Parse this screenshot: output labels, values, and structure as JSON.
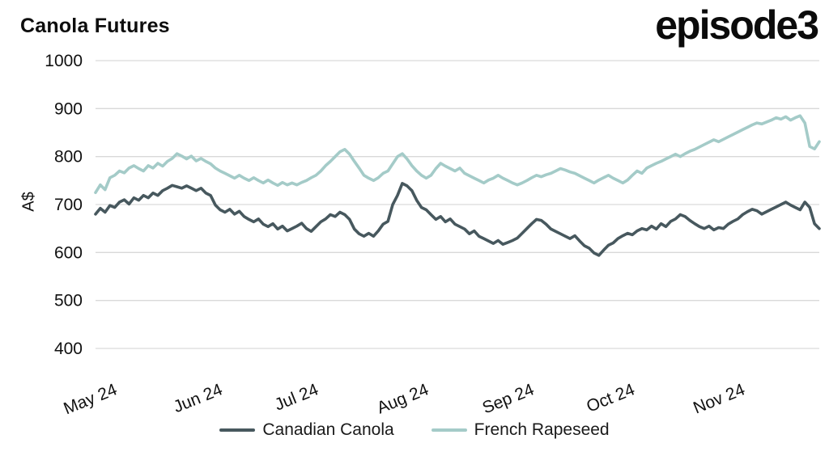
{
  "header": {
    "title": "Canola Futures",
    "logo": "episode3"
  },
  "y_axis": {
    "label": "A$"
  },
  "chart_data": {
    "type": "line",
    "title": "Canola Futures",
    "xlabel": "",
    "ylabel": "A$",
    "ylim": [
      400,
      1000
    ],
    "yticks": [
      400,
      500,
      600,
      700,
      800,
      900,
      1000
    ],
    "x_tick_labels": [
      "May 24",
      "Jun 24",
      "Jul 24",
      "Aug 24",
      "Sep 24",
      "Oct 24",
      "Nov 24"
    ],
    "x_tick_indices": [
      0,
      22,
      42,
      65,
      87,
      108,
      131
    ],
    "grid": "horizontal",
    "grid_color": "#d9d9d9",
    "legend_position": "bottom",
    "series": [
      {
        "name": "Canadian Canola",
        "color": "#47585e",
        "values": [
          680,
          692,
          684,
          698,
          694,
          705,
          710,
          701,
          714,
          709,
          719,
          714,
          724,
          719,
          729,
          734,
          740,
          737,
          734,
          739,
          734,
          729,
          734,
          724,
          719,
          699,
          689,
          684,
          690,
          680,
          686,
          675,
          669,
          664,
          670,
          659,
          654,
          660,
          649,
          655,
          645,
          650,
          655,
          661,
          650,
          644,
          654,
          664,
          670,
          679,
          675,
          684,
          679,
          669,
          649,
          639,
          634,
          640,
          634,
          645,
          659,
          665,
          700,
          719,
          744,
          739,
          729,
          709,
          694,
          689,
          679,
          669,
          675,
          664,
          670,
          659,
          654,
          649,
          639,
          645,
          634,
          629,
          624,
          619,
          625,
          617,
          621,
          625,
          630,
          640,
          650,
          660,
          669,
          667,
          659,
          649,
          644,
          639,
          634,
          629,
          635,
          624,
          614,
          609,
          599,
          594,
          605,
          615,
          620,
          629,
          635,
          640,
          637,
          645,
          650,
          647,
          655,
          649,
          660,
          654,
          665,
          670,
          679,
          675,
          667,
          660,
          654,
          650,
          655,
          647,
          652,
          650,
          659,
          665,
          670,
          679,
          685,
          690,
          687,
          680,
          685,
          690,
          695,
          700,
          705,
          699,
          694,
          689,
          705,
          694,
          660,
          650
        ]
      },
      {
        "name": "French Rapeseed",
        "color": "#a4cbc8",
        "values": [
          725,
          741,
          731,
          756,
          761,
          770,
          766,
          776,
          781,
          775,
          770,
          781,
          776,
          786,
          780,
          790,
          796,
          806,
          801,
          795,
          801,
          791,
          796,
          790,
          785,
          776,
          770,
          765,
          760,
          755,
          761,
          755,
          750,
          756,
          750,
          745,
          751,
          745,
          740,
          746,
          741,
          745,
          741,
          746,
          750,
          756,
          761,
          770,
          781,
          790,
          800,
          810,
          815,
          805,
          790,
          776,
          761,
          755,
          750,
          756,
          765,
          770,
          785,
          800,
          806,
          795,
          781,
          770,
          761,
          755,
          761,
          775,
          786,
          780,
          775,
          770,
          776,
          765,
          760,
          755,
          750,
          745,
          751,
          755,
          761,
          755,
          750,
          745,
          741,
          745,
          750,
          756,
          761,
          758,
          762,
          765,
          770,
          775,
          772,
          768,
          765,
          760,
          755,
          750,
          745,
          751,
          756,
          761,
          755,
          750,
          745,
          751,
          761,
          770,
          765,
          776,
          781,
          786,
          790,
          795,
          800,
          805,
          800,
          806,
          811,
          815,
          820,
          825,
          830,
          835,
          831,
          836,
          841,
          846,
          851,
          856,
          861,
          866,
          870,
          868,
          872,
          876,
          881,
          878,
          883,
          876,
          881,
          885,
          870,
          821,
          816,
          831
        ]
      }
    ]
  }
}
